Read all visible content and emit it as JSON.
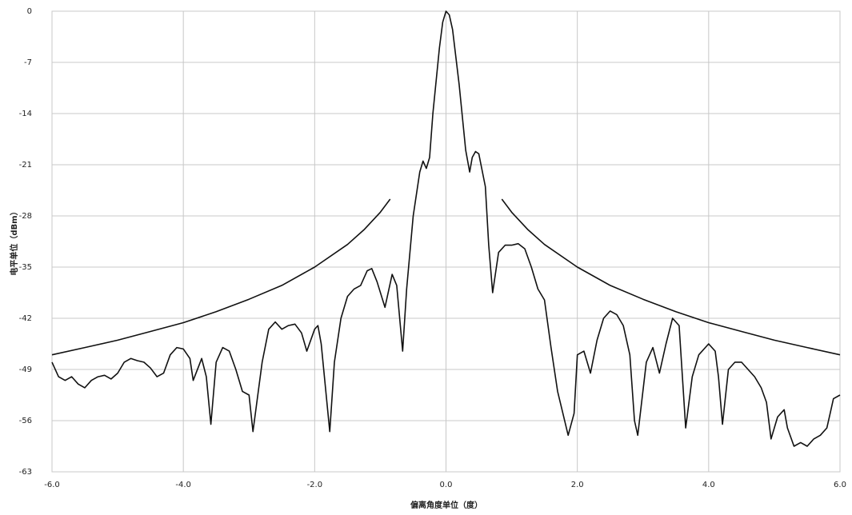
{
  "chart_data": {
    "type": "line",
    "x_label": "偏离角度单位（度）",
    "y_label": "电平单位（dBm）",
    "xlim": [
      -6,
      6
    ],
    "ylim": [
      -63,
      0
    ],
    "xticks": [
      {
        "value": -6,
        "label": "-6.0"
      },
      {
        "value": -4,
        "label": "-4.0"
      },
      {
        "value": -2,
        "label": "-2.0"
      },
      {
        "value": 0,
        "label": "0.0"
      },
      {
        "value": 2,
        "label": "2.0"
      },
      {
        "value": 4,
        "label": "4.0"
      },
      {
        "value": 6,
        "label": "6.0"
      }
    ],
    "yticks": [
      0,
      -7,
      -14,
      -21,
      -28,
      -35,
      -42,
      -49,
      -56,
      -63
    ],
    "grid": true,
    "series": [
      {
        "color": "#111111",
        "x": [
          -6.0,
          -5.9,
          -5.8,
          -5.7,
          -5.6,
          -5.5,
          -5.4,
          -5.3,
          -5.2,
          -5.1,
          -5.0,
          -4.9,
          -4.8,
          -4.7,
          -4.6,
          -4.5,
          -4.4,
          -4.3,
          -4.2,
          -4.1,
          -4.0,
          -3.9,
          -3.85,
          -3.72,
          -3.65,
          -3.58,
          -3.5,
          -3.4,
          -3.3,
          -3.2,
          -3.1,
          -3.0,
          -2.94,
          -2.8,
          -2.7,
          -2.6,
          -2.5,
          -2.4,
          -2.3,
          -2.2,
          -2.12,
          -2.0,
          -1.95,
          -1.9,
          -1.77,
          -1.7,
          -1.6,
          -1.5,
          -1.4,
          -1.3,
          -1.2,
          -1.13,
          -1.05,
          -0.93,
          -0.82,
          -0.75,
          -0.66,
          -0.6,
          -0.5,
          -0.4,
          -0.35,
          -0.3,
          -0.25,
          -0.2,
          -0.1,
          -0.05,
          0.0,
          0.05,
          0.1,
          0.2,
          0.3,
          0.36,
          0.4,
          0.45,
          0.5,
          0.6,
          0.65,
          0.71,
          0.8,
          0.9,
          1.0,
          1.1,
          1.2,
          1.3,
          1.4,
          1.5,
          1.6,
          1.7,
          1.86,
          1.95,
          2.0,
          2.1,
          2.2,
          2.3,
          2.4,
          2.5,
          2.6,
          2.7,
          2.8,
          2.87,
          2.92,
          3.05,
          3.15,
          3.25,
          3.35,
          3.45,
          3.55,
          3.6,
          3.65,
          3.75,
          3.85,
          4.0,
          4.1,
          4.15,
          4.21,
          4.3,
          4.4,
          4.5,
          4.6,
          4.7,
          4.8,
          4.88,
          4.95,
          5.05,
          5.15,
          5.2,
          5.3,
          5.4,
          5.5,
          5.6,
          5.7,
          5.8,
          5.85,
          5.9,
          6.0
        ],
        "values": [
          -48,
          -50,
          -50.5,
          -50,
          -51,
          -51.5,
          -50.5,
          -50,
          -49.8,
          -50.3,
          -49.5,
          -48,
          -47.5,
          -47.8,
          -48,
          -48.8,
          -50,
          -49.5,
          -47,
          -46,
          -46.2,
          -47.5,
          -50.5,
          -47.5,
          -50,
          -56.5,
          -48,
          -46,
          -46.5,
          -49,
          -52,
          -52.5,
          -57.5,
          -48,
          -43.5,
          -42.5,
          -43.5,
          -43,
          -42.8,
          -44,
          -46.5,
          -43.5,
          -43,
          -45.5,
          -57.5,
          -48,
          -42,
          -39,
          -38,
          -37.5,
          -35.5,
          -35.2,
          -37,
          -40.5,
          -36,
          -37.5,
          -46.5,
          -38,
          -28,
          -22,
          -20.5,
          -21.5,
          -20,
          -14,
          -5,
          -1.5,
          0,
          -0.5,
          -2.5,
          -10,
          -19,
          -22,
          -20,
          -19.2,
          -19.5,
          -24,
          -32,
          -38.5,
          -33,
          -32,
          -32,
          -31.8,
          -32.5,
          -35,
          -38,
          -39.5,
          -46,
          -52,
          -58,
          -55,
          -47,
          -46.5,
          -49.5,
          -45,
          -42,
          -41,
          -41.5,
          -43,
          -47,
          -56,
          -58,
          -48,
          -46,
          -49.5,
          -45.5,
          -42,
          -43,
          -50,
          -57,
          -50,
          -47,
          -45.5,
          -46.5,
          -50,
          -56.5,
          -49,
          -48,
          -48,
          -49,
          -50,
          -51.5,
          -53.5,
          -58.5,
          -55.5,
          -54.5,
          -57,
          -59.5,
          -59,
          -59.5,
          -58.5,
          -58,
          -57,
          -55,
          -53,
          -52.5
        ]
      },
      {
        "color": "#111111",
        "x": [
          -6,
          -5.5,
          -5,
          -4.5,
          -4,
          -3.5,
          -3,
          -2.5,
          -2,
          -1.5,
          -1.25,
          -1,
          -0.85,
          0,
          0.85,
          1,
          1.25,
          1.5,
          2,
          2.5,
          3,
          3.5,
          4,
          4.5,
          5,
          5.5,
          6
        ],
        "values": [
          -47.0,
          -46.0,
          -45.0,
          -43.8,
          -42.6,
          -41.1,
          -39.4,
          -37.5,
          -35.0,
          -31.9,
          -29.9,
          -27.5,
          -25.7,
          null,
          -25.7,
          -27.5,
          -29.9,
          -31.9,
          -35.0,
          -37.5,
          -39.4,
          -41.1,
          -42.6,
          -43.8,
          -45.0,
          -46.0,
          -47.0
        ]
      }
    ]
  }
}
